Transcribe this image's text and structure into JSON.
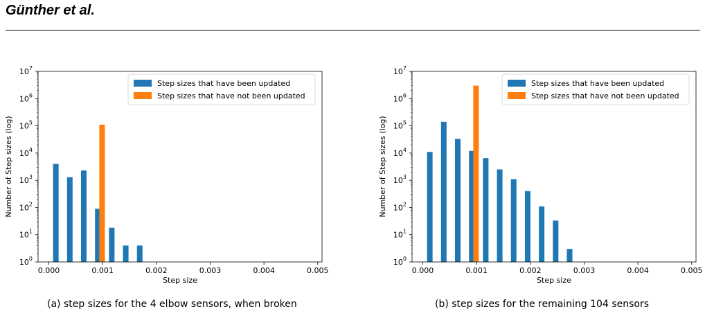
{
  "header": {
    "author": "Günther et al."
  },
  "chart_data": [
    {
      "type": "bar",
      "scale": "log",
      "xlabel": "Step size",
      "ylabel": "Number of Step sizes (log)",
      "xlim": [
        -0.0002,
        0.00508
      ],
      "xticks": [
        0.0,
        0.001,
        0.002,
        0.003,
        0.004,
        0.005
      ],
      "xtick_labels": [
        "0.000",
        "0.001",
        "0.002",
        "0.003",
        "0.004",
        "0.005"
      ],
      "ylim": [
        1,
        10000000
      ],
      "ytick_exponents": [
        0,
        1,
        2,
        3,
        4,
        5,
        6,
        7
      ],
      "legend_position": "top-right",
      "series": [
        {
          "name": "Step sizes that have been updated",
          "color": "#1f77b4",
          "x": [
            0.00013,
            0.00039,
            0.00065,
            0.00091,
            0.00117,
            0.00143,
            0.00169
          ],
          "values": [
            4000,
            1300,
            2300,
            90,
            18,
            4,
            4
          ]
        },
        {
          "name": "Step sizes that have not been updated",
          "color": "#ff7f0e",
          "x": [
            0.00099
          ],
          "values": [
            110000
          ]
        }
      ],
      "caption": "(a) step sizes for the 4 elbow sensors, when broken"
    },
    {
      "type": "bar",
      "scale": "log",
      "xlabel": "Step size",
      "ylabel": "Number of Step sizes (log)",
      "xlim": [
        -0.0002,
        0.00508
      ],
      "xticks": [
        0.0,
        0.001,
        0.002,
        0.003,
        0.004,
        0.005
      ],
      "xtick_labels": [
        "0.000",
        "0.001",
        "0.002",
        "0.003",
        "0.004",
        "0.005"
      ],
      "ylim": [
        1,
        10000000
      ],
      "ytick_exponents": [
        0,
        1,
        2,
        3,
        4,
        5,
        6,
        7
      ],
      "legend_position": "top-right",
      "series": [
        {
          "name": "Step sizes that have been updated",
          "color": "#1f77b4",
          "x": [
            0.00013,
            0.00039,
            0.00065,
            0.00091,
            0.00117,
            0.00143,
            0.00169,
            0.00195,
            0.00221,
            0.00247,
            0.00273
          ],
          "values": [
            11000,
            140000,
            33000,
            12000,
            6500,
            2500,
            1100,
            400,
            110,
            33,
            3
          ]
        },
        {
          "name": "Step sizes that have not been updated",
          "color": "#ff7f0e",
          "x": [
            0.00099
          ],
          "values": [
            3000000
          ]
        }
      ],
      "caption": "(b) step sizes for the remaining 104 sensors"
    }
  ]
}
